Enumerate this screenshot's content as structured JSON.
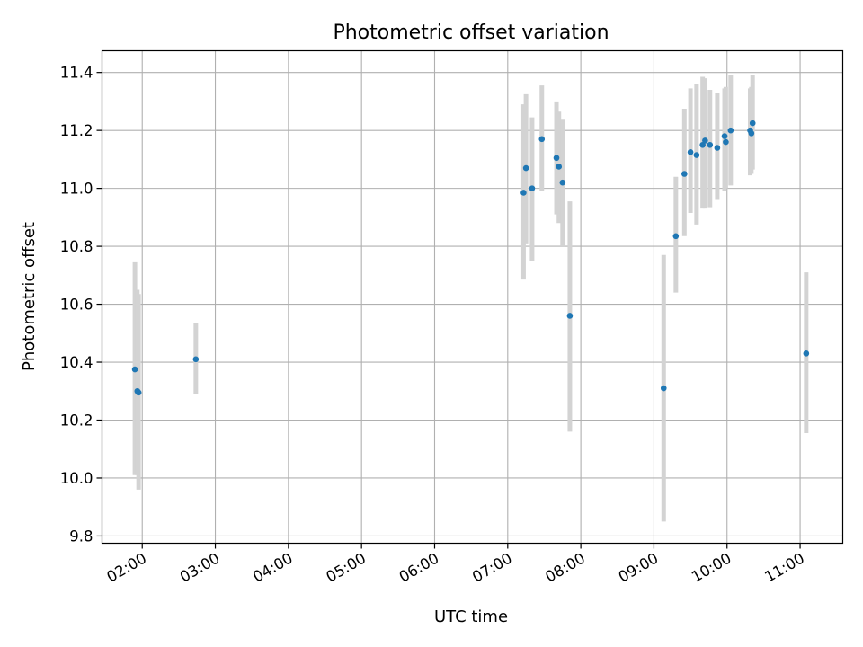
{
  "chart_data": {
    "type": "scatter",
    "title": "Photometric offset variation",
    "xlabel": "UTC time",
    "ylabel": "Photometric offset",
    "xlim": [
      "01:27",
      "11:35"
    ],
    "ylim": [
      9.775,
      11.475
    ],
    "x_ticks": [
      "02:00",
      "03:00",
      "04:00",
      "05:00",
      "06:00",
      "07:00",
      "08:00",
      "09:00",
      "10:00",
      "11:00"
    ],
    "y_ticks": [
      "9.8",
      "10.0",
      "10.2",
      "10.4",
      "10.6",
      "10.8",
      "11.0",
      "11.2",
      "11.4"
    ],
    "grid": true,
    "legend": null,
    "colors": {
      "points": "#1f77b4",
      "error_bars": "#d3d3d3",
      "grid": "#b0b0b0"
    },
    "series": [
      {
        "x": [
          "01:54",
          "01:56",
          "01:57",
          "02:44",
          "07:13",
          "07:15",
          "07:20",
          "07:28",
          "07:40",
          "07:42",
          "07:45",
          "07:51",
          "09:08",
          "09:18",
          "09:25",
          "09:30",
          "09:35",
          "09:40",
          "09:42",
          "09:46",
          "09:52",
          "09:58",
          "09:59",
          "10:03",
          "10:19",
          "10:20",
          "10:21",
          "11:05"
        ],
        "y": [
          10.375,
          10.3,
          10.295,
          10.41,
          10.985,
          11.07,
          11.0,
          11.17,
          11.105,
          11.075,
          11.02,
          10.56,
          10.31,
          10.835,
          11.05,
          11.125,
          11.115,
          11.15,
          11.165,
          11.15,
          11.14,
          11.18,
          11.16,
          11.2,
          11.2,
          11.19,
          11.225,
          10.43
        ],
        "err_low": [
          10.01,
          10.01,
          9.96,
          10.29,
          10.685,
          10.81,
          10.75,
          10.99,
          10.91,
          10.88,
          10.8,
          10.16,
          9.85,
          10.64,
          10.835,
          10.915,
          10.875,
          10.93,
          10.93,
          10.935,
          10.96,
          10.99,
          11.0,
          11.01,
          11.045,
          11.05,
          11.065,
          10.155
        ],
        "err_high": [
          10.745,
          10.65,
          10.635,
          10.535,
          11.29,
          11.325,
          11.245,
          11.355,
          11.3,
          11.265,
          11.24,
          10.955,
          10.77,
          11.04,
          11.275,
          11.345,
          11.36,
          11.385,
          11.38,
          11.34,
          11.33,
          11.345,
          11.35,
          11.39,
          11.345,
          11.35,
          11.39,
          10.71
        ]
      }
    ]
  }
}
